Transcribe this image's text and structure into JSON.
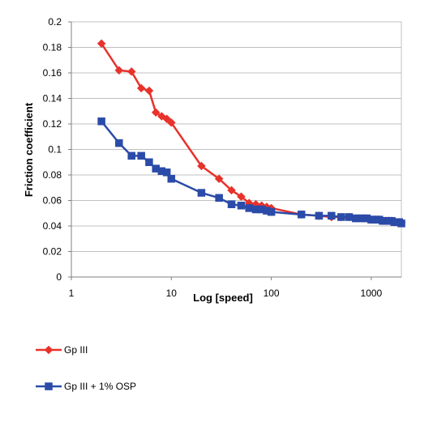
{
  "chart_data": {
    "type": "line",
    "title": "",
    "xlabel": "Log [speed]",
    "ylabel": "Friction coefficient",
    "xscale": "log",
    "xlim": [
      1,
      2000
    ],
    "ylim": [
      0,
      0.2
    ],
    "x_ticks": [
      1,
      10,
      100,
      1000
    ],
    "x_tick_labels": [
      "1",
      "10",
      "100",
      "1000"
    ],
    "y_ticks": [
      0,
      0.02,
      0.04,
      0.06,
      0.08,
      0.1,
      0.12,
      0.14,
      0.16,
      0.18,
      0.2
    ],
    "y_tick_labels": [
      "0",
      "0.02",
      "0.04",
      "0.06",
      "0.08",
      "0.1",
      "0.12",
      "0.14",
      "0.16",
      "0.18",
      "0.2"
    ],
    "grid": "horizontal",
    "legend_position": "bottom-left",
    "series": [
      {
        "name": "Gp III",
        "color": "#e8322b",
        "marker": "diamond",
        "x": [
          2,
          3,
          4,
          5,
          6,
          7,
          8,
          9,
          10,
          20,
          30,
          40,
          50,
          60,
          70,
          80,
          90,
          100,
          200,
          300,
          400,
          500,
          600,
          700,
          800,
          900,
          1000,
          1100,
          1200,
          1300,
          1400,
          1500,
          1600,
          1700,
          1800,
          1900,
          2000
        ],
        "values": [
          0.183,
          0.162,
          0.161,
          0.148,
          0.146,
          0.129,
          0.126,
          0.124,
          0.121,
          0.087,
          0.077,
          0.068,
          0.063,
          0.058,
          0.057,
          0.056,
          0.055,
          0.054,
          0.049,
          0.048,
          0.047,
          0.047,
          0.047,
          0.046,
          0.046,
          0.046,
          0.045,
          0.045,
          0.045,
          0.044,
          0.044,
          0.044,
          0.044,
          0.043,
          0.043,
          0.043,
          0.043
        ]
      },
      {
        "name": "Gp III + 1% OSP",
        "color": "#2b4ba8",
        "marker": "square",
        "x": [
          2,
          3,
          4,
          5,
          6,
          7,
          8,
          9,
          10,
          20,
          30,
          40,
          50,
          60,
          70,
          80,
          90,
          100,
          200,
          300,
          400,
          500,
          600,
          700,
          800,
          900,
          1000,
          1100,
          1200,
          1300,
          1400,
          1500,
          1600,
          1700,
          1800,
          1900,
          2000
        ],
        "values": [
          0.122,
          0.105,
          0.095,
          0.095,
          0.09,
          0.085,
          0.083,
          0.082,
          0.077,
          0.066,
          0.062,
          0.057,
          0.056,
          0.054,
          0.053,
          0.053,
          0.052,
          0.051,
          0.049,
          0.048,
          0.048,
          0.047,
          0.047,
          0.046,
          0.046,
          0.046,
          0.045,
          0.045,
          0.045,
          0.044,
          0.044,
          0.044,
          0.044,
          0.043,
          0.043,
          0.043,
          0.042
        ]
      }
    ]
  }
}
